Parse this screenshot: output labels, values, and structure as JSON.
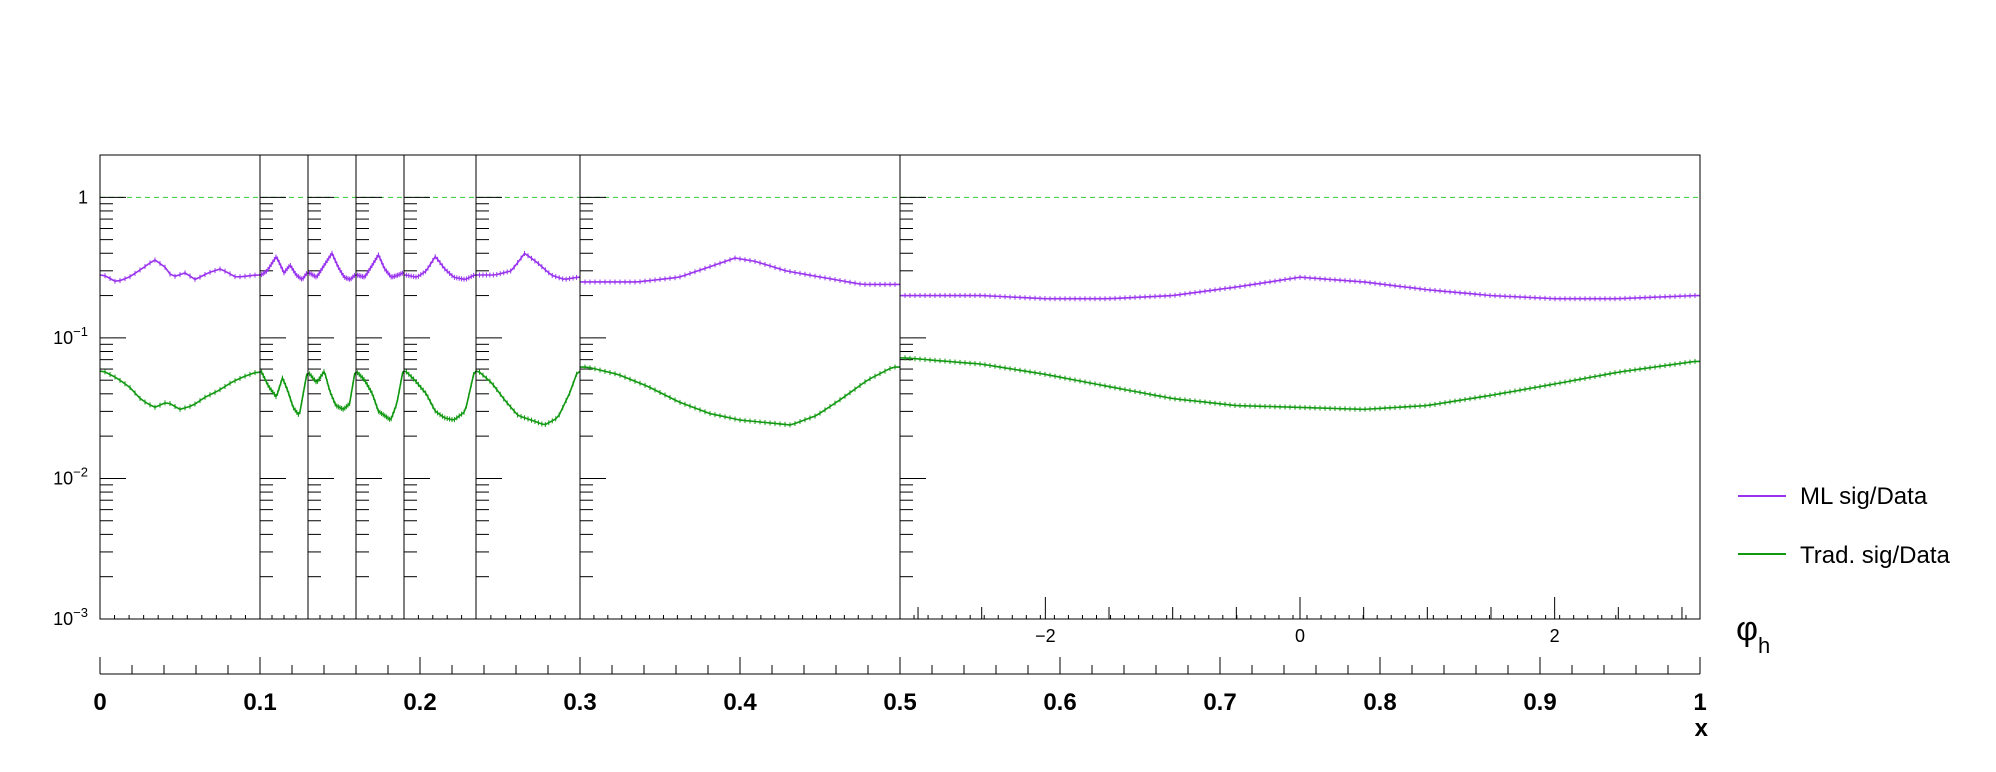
{
  "chart_data": {
    "type": "line",
    "title": "",
    "yscale": "log",
    "ylim": [
      0.001,
      2.0
    ],
    "y_ticks": [
      {
        "value": 1,
        "label": "1"
      },
      {
        "value": 0.1,
        "label": "10^-1"
      },
      {
        "value": 0.01,
        "label": "10^-2"
      },
      {
        "value": 0.001,
        "label": "10^-3"
      }
    ],
    "reference_line": {
      "y": 1,
      "color": "#33cc33",
      "style": "dashed"
    },
    "x_axis": {
      "label": "x",
      "range": [
        0,
        1
      ],
      "tick_labels": [
        "0",
        "0.1",
        "0.2",
        "0.3",
        "0.4",
        "0.5",
        "0.6",
        "0.7",
        "0.8",
        "0.9",
        "1"
      ],
      "bin_edges": [
        0,
        0.1,
        0.13,
        0.16,
        0.19,
        0.235,
        0.3,
        0.5,
        1.0
      ]
    },
    "phi_axis": {
      "label": "φ",
      "label_sub": "h",
      "range": [
        -3.1416,
        3.1416
      ],
      "ticks": [
        -2,
        0,
        2
      ],
      "tick_labels": [
        "−2",
        "0",
        "2"
      ]
    },
    "legend": {
      "placement": "right",
      "entries": [
        {
          "label": "ML sig/Data",
          "color": "#9933ee"
        },
        {
          "label": "Trad. sig/Data",
          "color": "#119911"
        }
      ]
    },
    "panels": [
      {
        "x_min": 0.0,
        "x_max": 0.1,
        "ml": [
          [
            -3.0,
            0.28
          ],
          [
            -2.5,
            0.25
          ],
          [
            -2.0,
            0.27
          ],
          [
            -1.5,
            0.31
          ],
          [
            -1.0,
            0.36
          ],
          [
            -0.6,
            0.32
          ],
          [
            -0.3,
            0.27
          ],
          [
            0.2,
            0.29
          ],
          [
            0.6,
            0.26
          ],
          [
            1.1,
            0.29
          ],
          [
            1.6,
            0.31
          ],
          [
            2.2,
            0.27
          ],
          [
            3.0,
            0.28
          ]
        ],
        "trad": [
          [
            -3.0,
            0.058
          ],
          [
            -2.5,
            0.052
          ],
          [
            -2.0,
            0.045
          ],
          [
            -1.5,
            0.036
          ],
          [
            -1.0,
            0.032
          ],
          [
            -0.5,
            0.035
          ],
          [
            0.0,
            0.031
          ],
          [
            0.5,
            0.033
          ],
          [
            1.0,
            0.038
          ],
          [
            1.5,
            0.042
          ],
          [
            2.0,
            0.048
          ],
          [
            2.5,
            0.053
          ],
          [
            3.0,
            0.057
          ]
        ]
      },
      {
        "x_min": 0.1,
        "x_max": 0.13,
        "ml": [
          [
            -3.0,
            0.28
          ],
          [
            -2.2,
            0.3
          ],
          [
            -1.0,
            0.38
          ],
          [
            0.0,
            0.29
          ],
          [
            0.8,
            0.33
          ],
          [
            1.6,
            0.28
          ],
          [
            2.4,
            0.26
          ],
          [
            3.0,
            0.29
          ]
        ],
        "trad": [
          [
            -3.0,
            0.058
          ],
          [
            -2.0,
            0.045
          ],
          [
            -1.0,
            0.038
          ],
          [
            -0.2,
            0.052
          ],
          [
            0.5,
            0.042
          ],
          [
            1.2,
            0.032
          ],
          [
            2.0,
            0.028
          ],
          [
            3.0,
            0.056
          ]
        ]
      },
      {
        "x_min": 0.13,
        "x_max": 0.16,
        "ml": [
          [
            -3.0,
            0.29
          ],
          [
            -2.0,
            0.27
          ],
          [
            -1.0,
            0.33
          ],
          [
            0.0,
            0.4
          ],
          [
            0.8,
            0.32
          ],
          [
            1.6,
            0.27
          ],
          [
            2.4,
            0.26
          ],
          [
            3.0,
            0.28
          ]
        ],
        "trad": [
          [
            -3.0,
            0.056
          ],
          [
            -2.0,
            0.048
          ],
          [
            -1.0,
            0.058
          ],
          [
            -0.3,
            0.042
          ],
          [
            0.5,
            0.033
          ],
          [
            1.5,
            0.031
          ],
          [
            2.3,
            0.034
          ],
          [
            3.0,
            0.057
          ]
        ]
      },
      {
        "x_min": 0.16,
        "x_max": 0.19,
        "ml": [
          [
            -3.0,
            0.28
          ],
          [
            -2.0,
            0.27
          ],
          [
            -1.0,
            0.33
          ],
          [
            -0.2,
            0.39
          ],
          [
            0.6,
            0.31
          ],
          [
            1.5,
            0.27
          ],
          [
            2.4,
            0.28
          ],
          [
            3.0,
            0.29
          ]
        ],
        "trad": [
          [
            -3.0,
            0.057
          ],
          [
            -2.0,
            0.05
          ],
          [
            -1.0,
            0.04
          ],
          [
            -0.2,
            0.03
          ],
          [
            0.6,
            0.028
          ],
          [
            1.4,
            0.026
          ],
          [
            2.2,
            0.034
          ],
          [
            3.0,
            0.058
          ]
        ]
      },
      {
        "x_min": 0.19,
        "x_max": 0.235,
        "ml": [
          [
            -3.0,
            0.28
          ],
          [
            -2.0,
            0.27
          ],
          [
            -1.2,
            0.3
          ],
          [
            -0.4,
            0.38
          ],
          [
            0.4,
            0.31
          ],
          [
            1.2,
            0.27
          ],
          [
            2.2,
            0.26
          ],
          [
            3.0,
            0.28
          ]
        ],
        "trad": [
          [
            -3.0,
            0.058
          ],
          [
            -2.2,
            0.05
          ],
          [
            -1.2,
            0.04
          ],
          [
            -0.4,
            0.03
          ],
          [
            0.4,
            0.027
          ],
          [
            1.2,
            0.026
          ],
          [
            2.2,
            0.03
          ],
          [
            3.0,
            0.058
          ]
        ]
      },
      {
        "x_min": 0.235,
        "x_max": 0.3,
        "ml": [
          [
            -3.0,
            0.28
          ],
          [
            -2.0,
            0.28
          ],
          [
            -1.0,
            0.3
          ],
          [
            -0.2,
            0.4
          ],
          [
            0.6,
            0.34
          ],
          [
            1.4,
            0.28
          ],
          [
            2.2,
            0.26
          ],
          [
            3.0,
            0.27
          ]
        ],
        "trad": [
          [
            -3.0,
            0.058
          ],
          [
            -2.2,
            0.048
          ],
          [
            -1.4,
            0.036
          ],
          [
            -0.6,
            0.028
          ],
          [
            0.2,
            0.026
          ],
          [
            1.0,
            0.024
          ],
          [
            1.8,
            0.027
          ],
          [
            2.5,
            0.04
          ],
          [
            3.0,
            0.058
          ]
        ]
      },
      {
        "x_min": 0.3,
        "x_max": 0.5,
        "ml": [
          [
            -3.0,
            0.25
          ],
          [
            -2.0,
            0.25
          ],
          [
            -1.2,
            0.27
          ],
          [
            -0.6,
            0.32
          ],
          [
            -0.1,
            0.37
          ],
          [
            0.3,
            0.35
          ],
          [
            0.9,
            0.3
          ],
          [
            1.6,
            0.27
          ],
          [
            2.4,
            0.24
          ],
          [
            3.0,
            0.24
          ]
        ],
        "trad": [
          [
            -3.0,
            0.062
          ],
          [
            -2.4,
            0.055
          ],
          [
            -1.8,
            0.045
          ],
          [
            -1.2,
            0.035
          ],
          [
            -0.6,
            0.029
          ],
          [
            0.0,
            0.026
          ],
          [
            0.5,
            0.025
          ],
          [
            1.0,
            0.024
          ],
          [
            1.5,
            0.028
          ],
          [
            2.0,
            0.037
          ],
          [
            2.5,
            0.05
          ],
          [
            3.0,
            0.062
          ]
        ]
      },
      {
        "x_min": 0.5,
        "x_max": 1.0,
        "ml": [
          [
            -3.1,
            0.2
          ],
          [
            -2.5,
            0.2
          ],
          [
            -2.0,
            0.19
          ],
          [
            -1.5,
            0.19
          ],
          [
            -1.0,
            0.2
          ],
          [
            -0.5,
            0.23
          ],
          [
            0.0,
            0.27
          ],
          [
            0.5,
            0.25
          ],
          [
            1.0,
            0.22
          ],
          [
            1.5,
            0.2
          ],
          [
            2.0,
            0.19
          ],
          [
            2.5,
            0.19
          ],
          [
            3.1,
            0.2
          ]
        ],
        "trad": [
          [
            -3.1,
            0.072
          ],
          [
            -2.5,
            0.065
          ],
          [
            -2.0,
            0.055
          ],
          [
            -1.5,
            0.045
          ],
          [
            -1.0,
            0.037
          ],
          [
            -0.5,
            0.033
          ],
          [
            0.0,
            0.032
          ],
          [
            0.5,
            0.031
          ],
          [
            1.0,
            0.033
          ],
          [
            1.5,
            0.039
          ],
          [
            2.0,
            0.047
          ],
          [
            2.5,
            0.057
          ],
          [
            3.1,
            0.068
          ]
        ]
      }
    ]
  }
}
